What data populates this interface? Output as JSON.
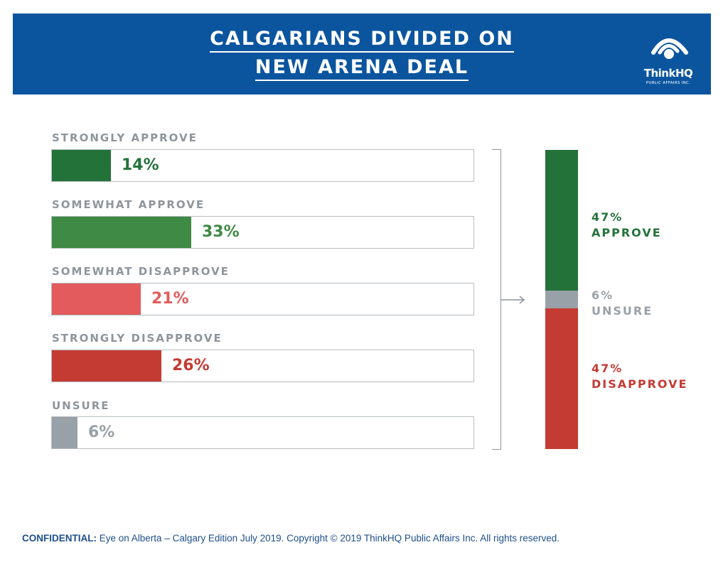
{
  "header": {
    "title_line1": "CALGARIANS DIVIDED ON",
    "title_line2": "NEW ARENA DEAL",
    "logo_name": "ThinkHQ",
    "logo_sub": "PUBLIC AFFAIRS INC.",
    "background": "#0b559f"
  },
  "chart_data": [
    {
      "type": "bar",
      "orientation": "horizontal",
      "categories": [
        "STRONGLY APPROVE",
        "SOMEWHAT APPROVE",
        "SOMEWHAT DISAPPROVE",
        "STRONGLY DISAPPROVE",
        "UNSURE"
      ],
      "values": [
        14,
        33,
        21,
        26,
        6
      ],
      "value_labels": [
        "14%",
        "33%",
        "21%",
        "26%",
        "6%"
      ],
      "colors": [
        "#23723a",
        "#3f8a44",
        "#e35b5c",
        "#c43b33",
        "#99a1a8"
      ],
      "xlim": [
        0,
        100
      ]
    },
    {
      "type": "bar",
      "orientation": "stacked-vertical",
      "series": [
        {
          "name": "APPROVE",
          "value": 47,
          "label": "47%",
          "color": "#23723a"
        },
        {
          "name": "UNSURE",
          "value": 6,
          "label": "6%",
          "color": "#99a1a8"
        },
        {
          "name": "DISAPPROVE",
          "value": 47,
          "label": "47%",
          "color": "#c43b33"
        }
      ]
    }
  ],
  "footer": {
    "prefix": "CONFIDENTIAL:",
    "text": " Eye on Alberta – Calgary Edition July 2019.  Copyright © 2019 ThinkHQ Public Affairs Inc. All rights reserved."
  }
}
